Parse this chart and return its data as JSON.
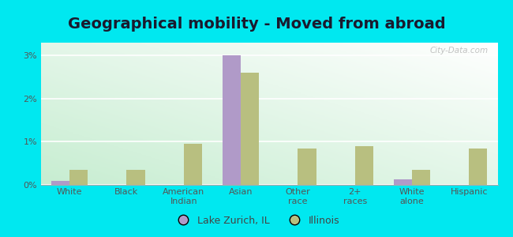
{
  "title": "Geographical mobility - Moved from abroad",
  "categories": [
    "White",
    "Black",
    "American\nIndian",
    "Asian",
    "Other\nrace",
    "2+\nraces",
    "White\nalone",
    "Hispanic"
  ],
  "lake_zurich": [
    0.1,
    0.0,
    0.0,
    3.0,
    0.0,
    0.0,
    0.12,
    0.0
  ],
  "illinois": [
    0.35,
    0.35,
    0.95,
    2.6,
    0.85,
    0.9,
    0.35,
    0.85
  ],
  "bar_color_city": "#b09ac8",
  "bar_color_state": "#b8bf80",
  "background_outer": "#00e8f0",
  "background_plot_topleft": "#ffffff",
  "background_plot_bottomright": "#c8ecd4",
  "ylim": [
    0,
    3.3
  ],
  "yticks": [
    0,
    1,
    2,
    3
  ],
  "ytick_labels": [
    "0%",
    "1%",
    "2%",
    "3%"
  ],
  "legend_city": "Lake Zurich, IL",
  "legend_state": "Illinois",
  "title_fontsize": 14,
  "tick_fontsize": 8,
  "legend_fontsize": 9,
  "bar_width": 0.32,
  "grid_color": "#e0e8e0",
  "watermark": "City-Data.com"
}
